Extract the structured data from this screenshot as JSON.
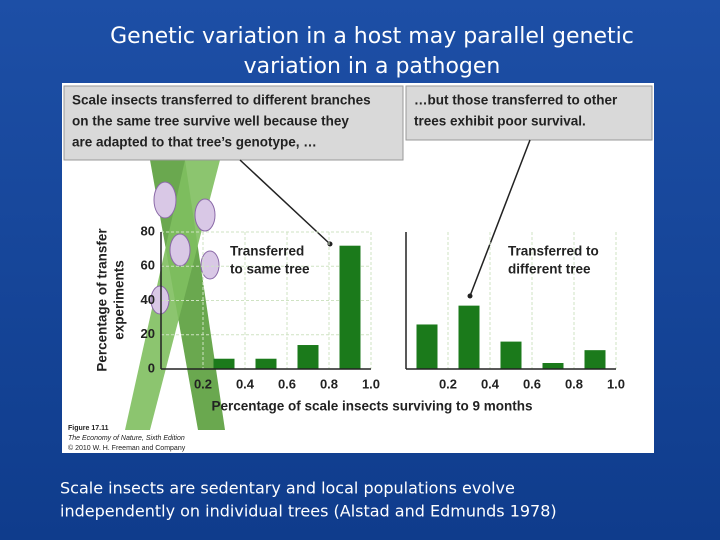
{
  "slide": {
    "title": [
      "Genetic variation in a host may parallel genetic",
      "variation in a pathogen"
    ],
    "caption": [
      "Scale insects are sedentary and local populations evolve",
      "independently on individual trees (Alstad and Edmunds 1978)"
    ]
  },
  "figure": {
    "callouts": [
      [
        "Scale insects transferred to different branches",
        "on the same tree survive well because they",
        "are adapted to that tree’s genotype, …"
      ],
      [
        "…but those transferred to other",
        "trees exhibit poor survival."
      ]
    ],
    "credit": [
      "Figure 17.11",
      "The Economy of Nature, Sixth Edition",
      "© 2010 W. H. Freeman and Company"
    ]
  },
  "chart_data": [
    {
      "type": "histogram",
      "annotation": [
        "Transferred",
        "to same tree"
      ],
      "y_label": [
        "Percentage of transfer",
        "experiments"
      ],
      "x_label": "Percentage of scale insects surviving to 9 months",
      "bins": [
        0,
        0.2,
        0.4,
        0.6,
        0.8,
        1.0
      ],
      "values": [
        0,
        6,
        6,
        14,
        72
      ],
      "color": "#1b7a1b",
      "xlim": [
        0,
        1
      ],
      "ylim": [
        0,
        80
      ],
      "xticks": [
        0.2,
        0.4,
        0.6,
        0.8,
        {
          "value": 1,
          "label": "1.0"
        }
      ],
      "yticks": [
        0,
        20,
        40,
        60,
        80
      ],
      "grid": true
    },
    {
      "type": "histogram",
      "annotation": [
        "Transferred to",
        "different tree"
      ],
      "bins": [
        0,
        0.2,
        0.4,
        0.6,
        0.8,
        1.0
      ],
      "values": [
        26,
        37,
        16,
        3.5,
        11
      ],
      "color": "#1b7a1b",
      "xlim": [
        0,
        1
      ],
      "ylim": [
        0,
        80
      ],
      "xticks": [
        0.2,
        0.4,
        0.6,
        0.8,
        {
          "value": 1,
          "label": "1.0"
        }
      ],
      "grid": true
    }
  ]
}
